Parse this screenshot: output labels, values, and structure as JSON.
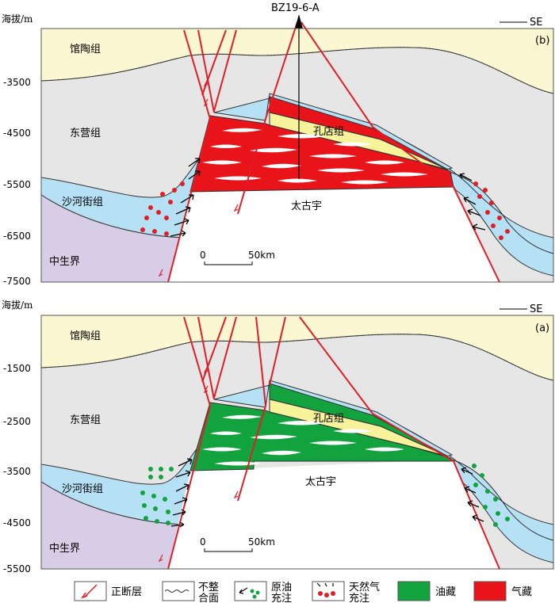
{
  "panel_b": {
    "y_axis_label": "海拔/m",
    "ticks": [
      "-3500",
      "-4500",
      "-5500",
      "-6500",
      "-7500"
    ],
    "well": "BZ19-6-A",
    "direction": "SE",
    "panel_label": "(b)",
    "formations": {
      "guantao": "馆陶组",
      "dongying": "东营组",
      "shahejie": "沙河街组",
      "mesozoic": "中生界",
      "kongdian": "孔店组",
      "archean": "太古宇"
    },
    "scale": {
      "start": "0",
      "end": "50km"
    }
  },
  "panel_a": {
    "y_axis_label": "海拔/m",
    "ticks": [
      "-1500",
      "-2500",
      "-3500",
      "-4500",
      "-5500"
    ],
    "direction": "SE",
    "panel_label": "(a)",
    "formations": {
      "guantao": "馆陶组",
      "dongying": "东营组",
      "shahejie": "沙河街组",
      "mesozoic": "中生界",
      "kongdian": "孔店组",
      "archean": "太古宇"
    },
    "scale": {
      "start": "0",
      "end": "50km"
    }
  },
  "legend": {
    "fault": "正断层",
    "unconformity_l1": "不整",
    "unconformity_l2": "合面",
    "oil_charge_l1": "原油",
    "oil_charge_l2": "充注",
    "gas_charge_l1": "天然气",
    "gas_charge_l2": "充注",
    "oil_reservoir": "油藏",
    "gas_reservoir": "气藏"
  },
  "colors": {
    "guantao": "#fbf7d2",
    "dongying": "#e6e6e6",
    "shahejie": "#b6e1f4",
    "mesozoic": "#d8cde6",
    "kongdian": "#f6f39a",
    "oil": "#12a33e",
    "gas": "#e8141a",
    "fault": "#e11d25"
  }
}
